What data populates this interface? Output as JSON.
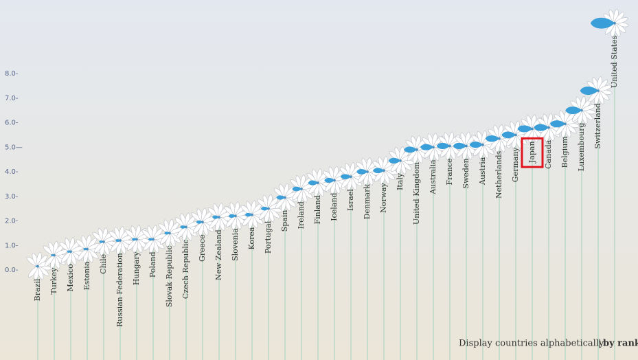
{
  "chart_data": {
    "type": "flower",
    "categories": [
      "Brazil",
      "Turkey",
      "Mexico",
      "Estonia",
      "Chile",
      "Russian Federation",
      "Hungary",
      "Poland",
      "Slovak Republic",
      "Czech Republic",
      "Greece",
      "New Zealand",
      "Slovenia",
      "Korea",
      "Portugal",
      "Spain",
      "Ireland",
      "Finland",
      "Iceland",
      "Israel",
      "Denmark",
      "Norway",
      "Italy",
      "United Kingdom",
      "Australia",
      "France",
      "Sweden",
      "Austria",
      "Netherlands",
      "Germany",
      "Japan",
      "Canada",
      "Belgium",
      "Luxembourg",
      "Switzerland",
      "United States"
    ],
    "values": [
      0.15,
      0.6,
      0.75,
      0.85,
      1.15,
      1.2,
      1.25,
      1.25,
      1.5,
      1.75,
      1.95,
      2.15,
      2.2,
      2.25,
      2.5,
      2.95,
      3.3,
      3.55,
      3.65,
      3.8,
      4.0,
      4.05,
      4.45,
      4.9,
      5.0,
      5.05,
      5.05,
      5.1,
      5.35,
      5.5,
      5.75,
      5.8,
      5.95,
      6.5,
      7.3,
      10.05
    ],
    "color": "#3a9fd8",
    "ylim": [
      0,
      8
    ],
    "yticks": [
      {
        "value": 0,
        "label": "0.0-"
      },
      {
        "value": 1,
        "label": "1.0-"
      },
      {
        "value": 2,
        "label": "2.0-"
      },
      {
        "value": 3,
        "label": "3.0-"
      },
      {
        "value": 4,
        "label": "4.0-"
      },
      {
        "value": 5,
        "label": "5.0—"
      },
      {
        "value": 6,
        "label": "6.0-"
      },
      {
        "value": 7,
        "label": "7.0-"
      },
      {
        "value": 8,
        "label": "8.0-"
      }
    ],
    "highlighted": "Japan",
    "sort_options": [
      "Display countries alphabetically",
      "by rank"
    ],
    "separator": "|"
  }
}
